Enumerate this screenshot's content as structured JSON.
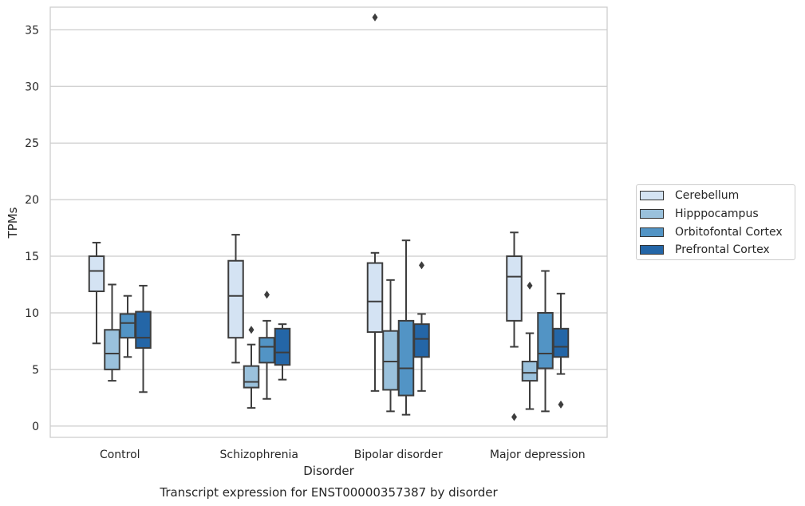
{
  "chart_data": {
    "type": "box",
    "xlabel": "Disorder",
    "ylabel": "TPMs",
    "caption": "Transcript expression for ENST00000357387 by disorder",
    "ylim": [
      -1,
      37
    ],
    "yticks": [
      0,
      5,
      10,
      15,
      20,
      25,
      30,
      35
    ],
    "grid": "horizontal",
    "legend_position": "right",
    "categories": [
      "Control",
      "Schizophrenia",
      "Bipolar disorder",
      "Major depression"
    ],
    "series": [
      {
        "name": "Cerebellum",
        "color": "#d4e3f3",
        "boxes": [
          {
            "whislo": 7.3,
            "q1": 11.9,
            "med": 13.7,
            "q3": 15.0,
            "whishi": 16.2,
            "fliers": []
          },
          {
            "whislo": 5.6,
            "q1": 7.8,
            "med": 11.5,
            "q3": 14.6,
            "whishi": 16.9,
            "fliers": []
          },
          {
            "whislo": 3.1,
            "q1": 8.3,
            "med": 11.0,
            "q3": 14.4,
            "whishi": 15.3,
            "fliers": [
              36.1
            ]
          },
          {
            "whislo": 7.0,
            "q1": 9.3,
            "med": 13.2,
            "q3": 15.0,
            "whishi": 17.1,
            "fliers": [
              0.8
            ]
          }
        ]
      },
      {
        "name": "Hipppocampus",
        "color": "#9ac1dc",
        "boxes": [
          {
            "whislo": 4.0,
            "q1": 5.0,
            "med": 6.4,
            "q3": 8.5,
            "whishi": 12.5,
            "fliers": []
          },
          {
            "whislo": 1.6,
            "q1": 3.4,
            "med": 3.9,
            "q3": 5.3,
            "whishi": 7.2,
            "fliers": [
              8.5
            ]
          },
          {
            "whislo": 1.3,
            "q1": 3.2,
            "med": 5.7,
            "q3": 8.4,
            "whishi": 12.9,
            "fliers": []
          },
          {
            "whislo": 1.5,
            "q1": 4.0,
            "med": 4.7,
            "q3": 5.7,
            "whishi": 8.2,
            "fliers": [
              12.4
            ]
          }
        ]
      },
      {
        "name": "Orbitofontal Cortex",
        "color": "#5294c5",
        "boxes": [
          {
            "whislo": 6.1,
            "q1": 7.8,
            "med": 9.1,
            "q3": 9.9,
            "whishi": 11.5,
            "fliers": []
          },
          {
            "whislo": 2.4,
            "q1": 5.6,
            "med": 7.0,
            "q3": 7.8,
            "whishi": 9.3,
            "fliers": [
              11.6
            ]
          },
          {
            "whislo": 1.0,
            "q1": 2.7,
            "med": 5.1,
            "q3": 9.3,
            "whishi": 16.4,
            "fliers": []
          },
          {
            "whislo": 1.3,
            "q1": 5.1,
            "med": 6.4,
            "q3": 10.0,
            "whishi": 13.7,
            "fliers": []
          }
        ]
      },
      {
        "name": "Prefrontal Cortex",
        "color": "#2466a7",
        "boxes": [
          {
            "whislo": 3.0,
            "q1": 6.9,
            "med": 7.8,
            "q3": 10.1,
            "whishi": 12.4,
            "fliers": []
          },
          {
            "whislo": 4.1,
            "q1": 5.4,
            "med": 6.5,
            "q3": 8.6,
            "whishi": 9.0,
            "fliers": []
          },
          {
            "whislo": 3.1,
            "q1": 6.1,
            "med": 7.7,
            "q3": 9.0,
            "whishi": 9.9,
            "fliers": [
              14.2
            ]
          },
          {
            "whislo": 4.6,
            "q1": 6.1,
            "med": 7.0,
            "q3": 8.6,
            "whishi": 11.7,
            "fliers": [
              1.9
            ]
          }
        ]
      }
    ]
  }
}
